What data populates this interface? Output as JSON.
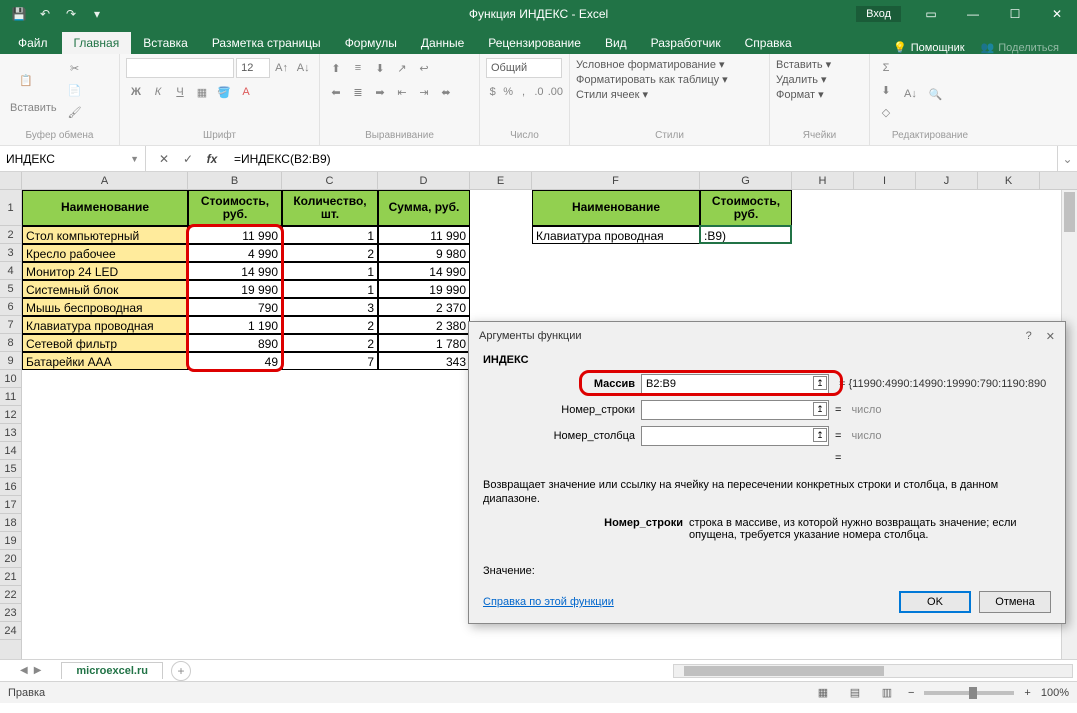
{
  "titlebar": {
    "title": "Функция ИНДЕКС - Excel",
    "login": "Вход"
  },
  "tabs": {
    "file": "Файл",
    "home": "Главная",
    "insert": "Вставка",
    "layout": "Разметка страницы",
    "formulas": "Формулы",
    "data": "Данные",
    "review": "Рецензирование",
    "view": "Вид",
    "developer": "Разработчик",
    "help": "Справка",
    "tellme": "Помощник",
    "share": "Поделиться"
  },
  "ribbon": {
    "paste": "Вставить",
    "clipboard": "Буфер обмена",
    "font_group": "Шрифт",
    "font_size": "12",
    "b": "Ж",
    "i": "К",
    "u": "Ч",
    "align": "Выравнивание",
    "number_combo": "Общий",
    "number": "Число",
    "cond": "Условное форматирование ▾",
    "fmt_table": "Форматировать как таблицу ▾",
    "cell_styles": "Стили ячеек ▾",
    "styles": "Стили",
    "ins": "Вставить ▾",
    "del": "Удалить ▾",
    "fmt": "Формат ▾",
    "cells": "Ячейки",
    "editing": "Редактирование"
  },
  "formula_bar": {
    "name": "ИНДЕКС",
    "formula": "=ИНДЕКС(B2:B9)"
  },
  "columns": {
    "A": "A",
    "B": "B",
    "C": "C",
    "D": "D",
    "E": "E",
    "F": "F",
    "G": "G",
    "H": "H",
    "I": "I",
    "J": "J",
    "K": "K"
  },
  "col_widths": {
    "A": 166,
    "B": 94,
    "C": 96,
    "D": 92,
    "E": 62,
    "F": 168,
    "G": 92,
    "H": 62,
    "I": 62,
    "J": 62,
    "K": 62
  },
  "row1_height": 36,
  "headers1": {
    "A": "Наименование",
    "B": "Стоимость, руб.",
    "C": "Количество, шт.",
    "D": "Сумма, руб."
  },
  "headers2": {
    "F": "Наименование",
    "G": "Стоимость, руб."
  },
  "rows": [
    {
      "A": "Стол компьютерный",
      "B": "11 990",
      "C": "1",
      "D": "11 990"
    },
    {
      "A": "Кресло рабочее",
      "B": "4 990",
      "C": "2",
      "D": "9 980"
    },
    {
      "A": "Монитор 24 LED",
      "B": "14 990",
      "C": "1",
      "D": "14 990"
    },
    {
      "A": "Системный блок",
      "B": "19 990",
      "C": "1",
      "D": "19 990"
    },
    {
      "A": "Мышь беспроводная",
      "B": "790",
      "C": "3",
      "D": "2 370"
    },
    {
      "A": "Клавиатура проводная",
      "B": "1 190",
      "C": "2",
      "D": "2 380"
    },
    {
      "A": "Сетевой фильтр",
      "B": "890",
      "C": "2",
      "D": "1 780"
    },
    {
      "A": "Батарейки ААА",
      "B": "49",
      "C": "7",
      "D": "343"
    }
  ],
  "lookup": {
    "F2": "Клавиатура проводная",
    "G2": ":B9)"
  },
  "dialog": {
    "title": "Аргументы функции",
    "func": "ИНДЕКС",
    "arg1_label": "Массив",
    "arg1_value": "B2:B9",
    "arg1_result": "= {11990:4990:14990:19990:790:1190:890",
    "arg2_label": "Номер_строки",
    "arg2_value": "",
    "arg2_result": "число",
    "arg3_label": "Номер_столбца",
    "arg3_value": "",
    "arg3_result": "число",
    "eq": "=",
    "desc": "Возвращает значение или ссылку на ячейку на пересечении конкретных строки и столбца, в данном диапазоне.",
    "argdesc_label": "Номер_строки",
    "argdesc_text": "строка в массиве, из которой нужно возвращать значение; если опущена, требуется указание номера столбца.",
    "value_label": "Значение:",
    "help": "Справка по этой функции",
    "ok": "OK",
    "cancel": "Отмена"
  },
  "sheet": {
    "name": "microexcel.ru"
  },
  "statusbar": {
    "mode": "Правка",
    "zoom": "100%"
  },
  "colors": {
    "excel_green": "#217346",
    "header_green": "#92d050",
    "yellow": "#ffeb9c",
    "red_highlight": "#d00000",
    "link": "#0066cc"
  }
}
